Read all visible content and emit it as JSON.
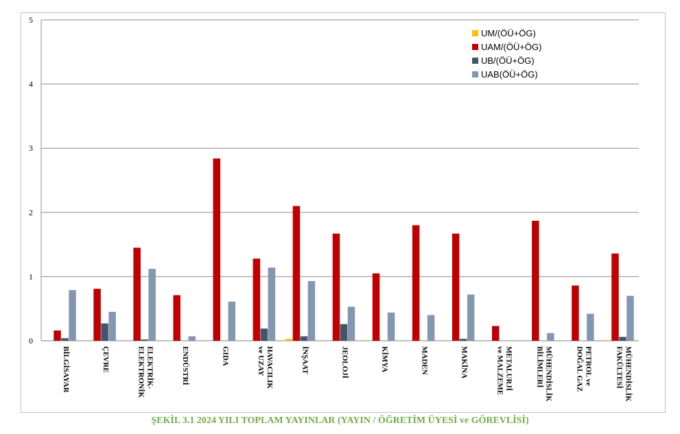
{
  "chart_data": {
    "type": "bar",
    "title": "",
    "xlabel": "",
    "ylabel": "",
    "ylim": [
      0,
      5
    ],
    "yticks": [
      0,
      1,
      2,
      3,
      4,
      5
    ],
    "grid": true,
    "legend_position": "top-right",
    "categories": [
      [
        "BİLGİSAYAR"
      ],
      [
        "ÇEVRE"
      ],
      [
        "ELEKTRİK-",
        "ELEKTRONİK"
      ],
      [
        "ENDÜSTRİ"
      ],
      [
        "GIDA"
      ],
      [
        "HAVACILIK",
        "ve UZAY"
      ],
      [
        "İNŞAAT"
      ],
      [
        "JEOLOJİ"
      ],
      [
        "KİMYA"
      ],
      [
        "MADEN"
      ],
      [
        "MAKİNA"
      ],
      [
        "METALURJİ",
        "ve MALZEME"
      ],
      [
        "MÜHENDİSLİK",
        "BİLİMLERİ"
      ],
      [
        "PETROL ve",
        "DOĞAL GAZ"
      ],
      [
        "MÜHENDİSLİK",
        "FAKÜLTESİ"
      ]
    ],
    "series": [
      {
        "name": "UM/(ÖÜ+ÖG)",
        "color": "#ffc000",
        "values": [
          0,
          0,
          0,
          0,
          0,
          0,
          0.03,
          0,
          0,
          0,
          0,
          0,
          0,
          0,
          0.01
        ]
      },
      {
        "name": "UAM/(ÖÜ+ÖG)",
        "color": "#c00000",
        "values": [
          0.16,
          0.81,
          1.45,
          0.71,
          2.84,
          1.28,
          2.1,
          1.67,
          1.05,
          1.8,
          1.67,
          0.23,
          1.87,
          0.86,
          1.36
        ]
      },
      {
        "name": "UB/(ÖÜ+ÖG)",
        "color": "#44546a",
        "values": [
          0.04,
          0.27,
          0.02,
          0,
          0,
          0.19,
          0.07,
          0.26,
          0,
          0,
          0.03,
          0,
          0,
          0,
          0.06
        ]
      },
      {
        "name": "UAB(ÖÜ+ÖG)",
        "color": "#8497b0",
        "values": [
          0.79,
          0.45,
          1.12,
          0.07,
          0.61,
          1.14,
          0.93,
          0.53,
          0.44,
          0.4,
          0.72,
          0,
          0.12,
          0.42,
          0.7
        ]
      }
    ]
  },
  "caption": "ŞEKİL 3.1   2024 YILI TOPLAM YAYINLAR (YAYIN / ÖĞRETİM ÜYESİ ve GÖREVLİSİ)"
}
